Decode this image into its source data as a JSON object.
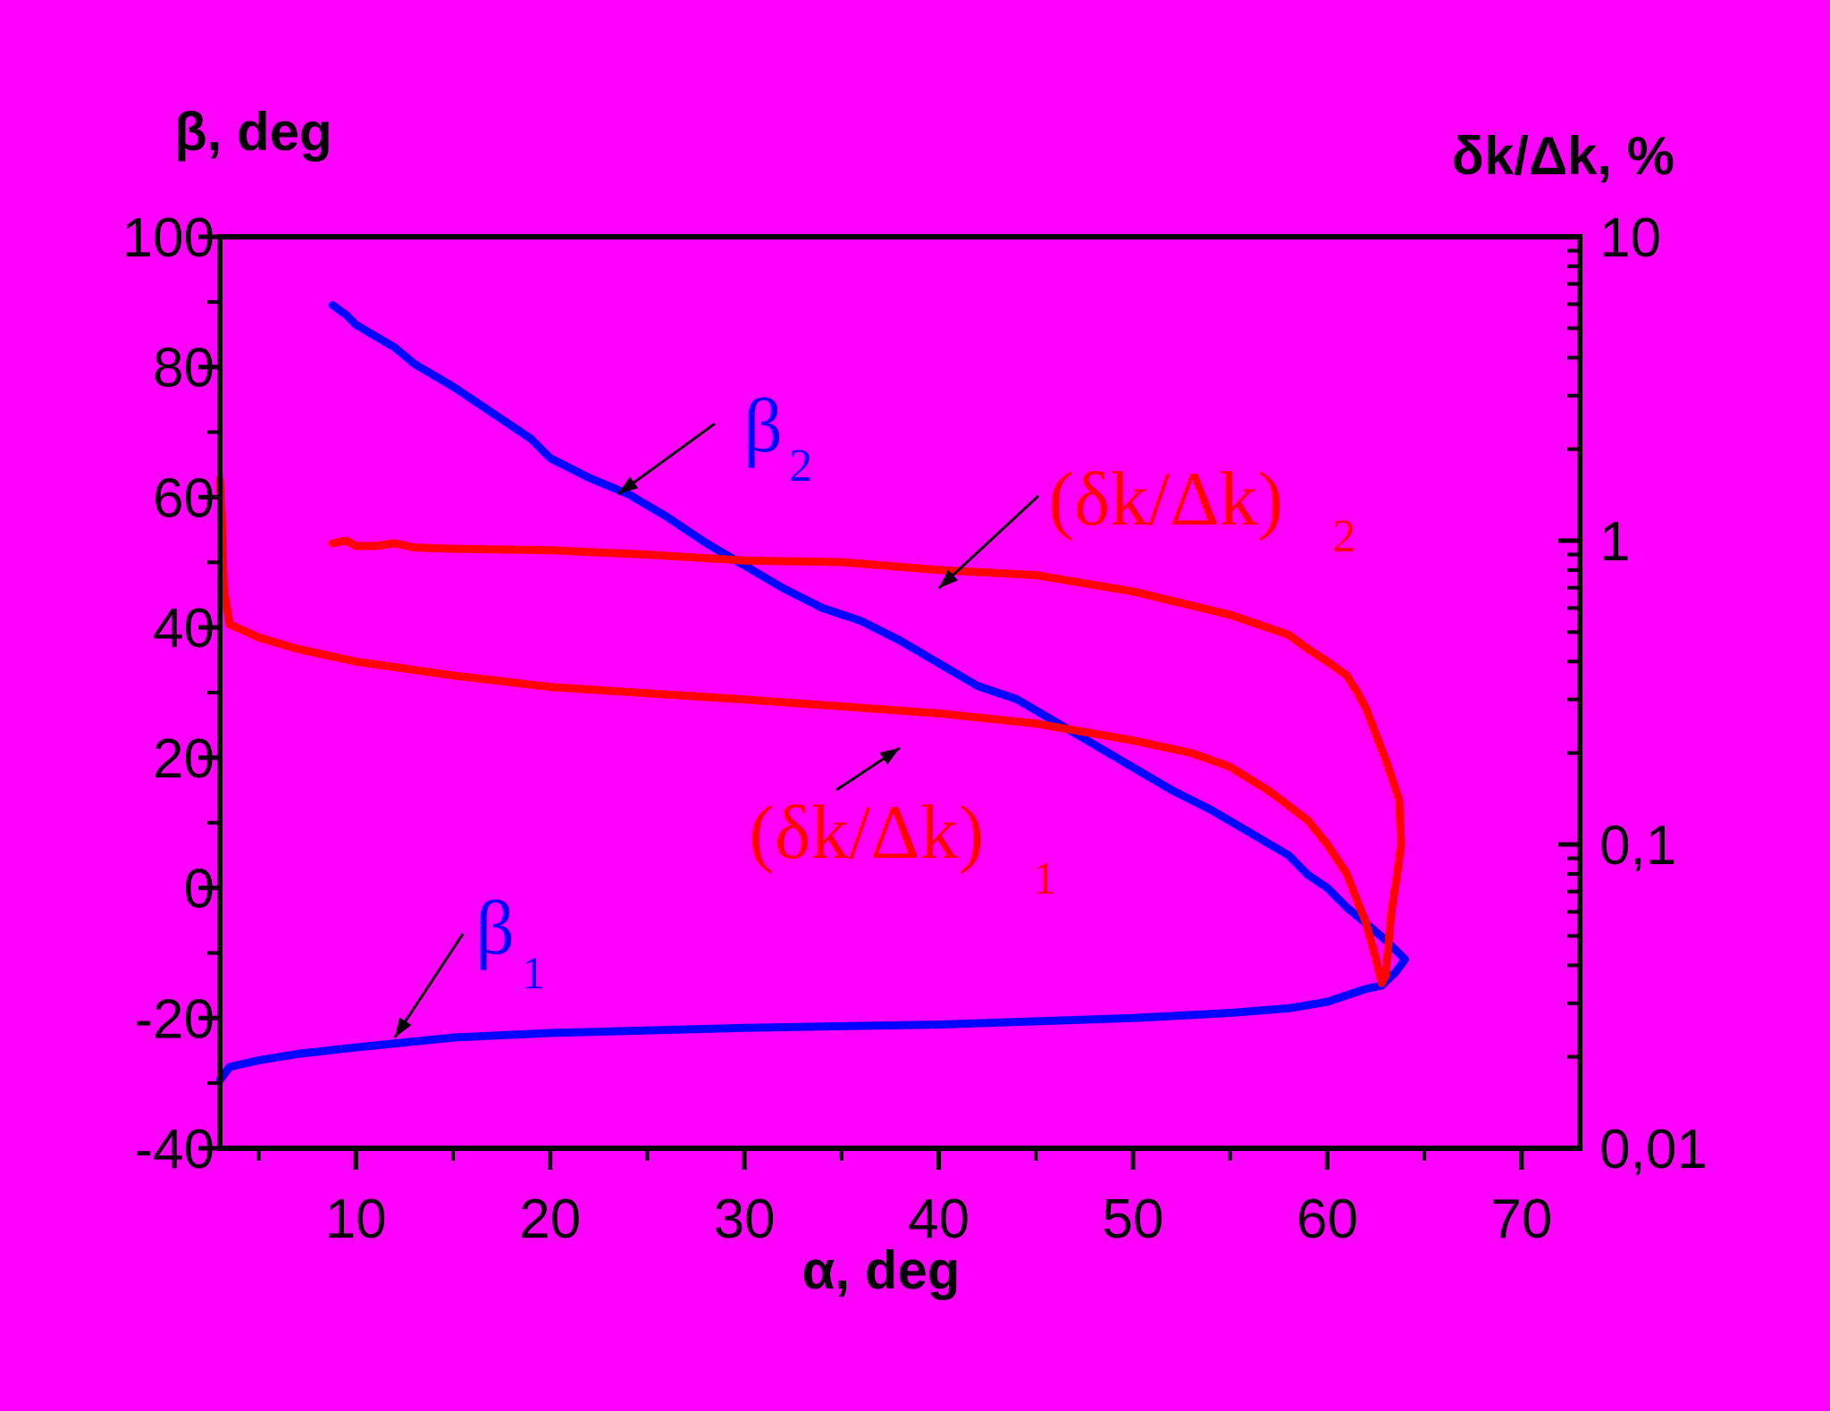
{
  "chart_data": {
    "type": "line",
    "x_axis": {
      "label": "α, deg",
      "range": [
        3,
        73
      ],
      "ticks": [
        10,
        20,
        30,
        40,
        50,
        60,
        70
      ],
      "tick_labels": [
        "10",
        "20",
        "30",
        "40",
        "50",
        "60",
        "70"
      ]
    },
    "y_axis_left": {
      "label": "β, deg",
      "range": [
        -40,
        100
      ],
      "ticks": [
        -40,
        -20,
        0,
        20,
        40,
        60,
        80,
        100
      ],
      "tick_labels": [
        "-40",
        "-20",
        "0",
        "20",
        "40",
        "60",
        "80",
        "100"
      ]
    },
    "y_axis_right": {
      "label": "δk/Δk, %",
      "scale": "log",
      "range": [
        0.01,
        10
      ],
      "ticks": [
        0.01,
        0.1,
        1,
        10
      ],
      "tick_labels": [
        "0,01",
        "0,1",
        "1",
        "10"
      ]
    },
    "grid": false,
    "series": [
      {
        "name": "β2",
        "axis": "left",
        "color": "#0000FF",
        "points": [
          [
            8.8,
            89.5
          ],
          [
            9.5,
            88
          ],
          [
            10,
            86.5
          ],
          [
            12,
            83
          ],
          [
            13,
            80.5
          ],
          [
            15,
            77
          ],
          [
            17,
            73
          ],
          [
            19,
            69
          ],
          [
            20,
            66
          ],
          [
            22,
            63
          ],
          [
            24,
            60.5
          ],
          [
            26,
            57
          ],
          [
            28,
            53
          ],
          [
            30,
            49.5
          ],
          [
            32,
            46
          ],
          [
            34,
            43
          ],
          [
            36,
            41
          ],
          [
            38,
            38
          ],
          [
            40,
            34.5
          ],
          [
            42,
            31
          ],
          [
            44,
            29
          ],
          [
            46,
            25.5
          ],
          [
            48,
            22
          ],
          [
            50,
            18.5
          ],
          [
            52,
            15
          ],
          [
            54,
            12
          ],
          [
            56,
            8.5
          ],
          [
            58,
            5
          ],
          [
            59,
            2
          ],
          [
            60,
            0
          ],
          [
            61,
            -3
          ],
          [
            62,
            -5.5
          ],
          [
            63,
            -8
          ],
          [
            63.5,
            -9.5
          ],
          [
            64,
            -11
          ],
          [
            63.5,
            -13
          ],
          [
            62.8,
            -15
          ]
        ]
      },
      {
        "name": "β1",
        "axis": "left",
        "color": "#0000FF",
        "points": [
          [
            3,
            -29.5
          ],
          [
            3.5,
            -27.5
          ],
          [
            5,
            -26.5
          ],
          [
            7,
            -25.5
          ],
          [
            10,
            -24.5
          ],
          [
            15,
            -23
          ],
          [
            20,
            -22.3
          ],
          [
            30,
            -21.5
          ],
          [
            40,
            -21
          ],
          [
            45,
            -20.5
          ],
          [
            50,
            -20
          ],
          [
            55,
            -19.2
          ],
          [
            58,
            -18.5
          ],
          [
            60,
            -17.5
          ],
          [
            61,
            -16.5
          ],
          [
            62,
            -15.5
          ],
          [
            62.8,
            -15
          ]
        ]
      },
      {
        "name": "(δk/Δk)2",
        "axis": "right",
        "color": "#FF0000",
        "points": [
          [
            8.8,
            0.98
          ],
          [
            9.5,
            1.0
          ],
          [
            10,
            0.96
          ],
          [
            11,
            0.96
          ],
          [
            12,
            0.98
          ],
          [
            13,
            0.95
          ],
          [
            15,
            0.94
          ],
          [
            20,
            0.93
          ],
          [
            25,
            0.9
          ],
          [
            30,
            0.86
          ],
          [
            35,
            0.85
          ],
          [
            40,
            0.8
          ],
          [
            45,
            0.77
          ],
          [
            50,
            0.68
          ],
          [
            55,
            0.57
          ],
          [
            58,
            0.49
          ],
          [
            59,
            0.44
          ],
          [
            60,
            0.4
          ],
          [
            61,
            0.36
          ],
          [
            61.5,
            0.32
          ],
          [
            62,
            0.28
          ],
          [
            62.5,
            0.23
          ],
          [
            63,
            0.19
          ],
          [
            63.4,
            0.16
          ],
          [
            63.7,
            0.14
          ],
          [
            63.8,
            0.1
          ],
          [
            63.6,
            0.08
          ],
          [
            63.3,
            0.06
          ],
          [
            63,
            0.037
          ],
          [
            62.8,
            0.035
          ]
        ]
      },
      {
        "name": "(δk/Δk)1",
        "axis": "right",
        "color": "#FF0000",
        "points": [
          [
            3,
            1.6
          ],
          [
            3.1,
            1.2
          ],
          [
            3.2,
            0.7
          ],
          [
            3.5,
            0.53
          ],
          [
            5,
            0.48
          ],
          [
            7,
            0.44
          ],
          [
            10,
            0.4
          ],
          [
            15,
            0.36
          ],
          [
            20,
            0.33
          ],
          [
            30,
            0.3
          ],
          [
            40,
            0.27
          ],
          [
            45,
            0.25
          ],
          [
            50,
            0.22
          ],
          [
            53,
            0.2
          ],
          [
            55,
            0.18
          ],
          [
            57,
            0.15
          ],
          [
            59,
            0.12
          ],
          [
            60,
            0.1
          ],
          [
            61,
            0.08
          ],
          [
            62,
            0.055
          ],
          [
            62.5,
            0.042
          ],
          [
            62.8,
            0.035
          ]
        ]
      }
    ],
    "annotations": [
      {
        "main": "β",
        "sub": "2",
        "color": "#0000FF",
        "at": [
          23.5,
          60.5
        ]
      },
      {
        "main": "β",
        "sub": "1",
        "color": "#0000FF",
        "at": [
          12,
          -23
        ]
      },
      {
        "main": "(δk/Δk)",
        "sub": "2",
        "color": "#FF0000",
        "at": [
          40,
          46
        ]
      },
      {
        "main": "(δk/Δk)",
        "sub": "1",
        "color": "#FF0000",
        "at": [
          38,
          21.5
        ]
      }
    ]
  }
}
